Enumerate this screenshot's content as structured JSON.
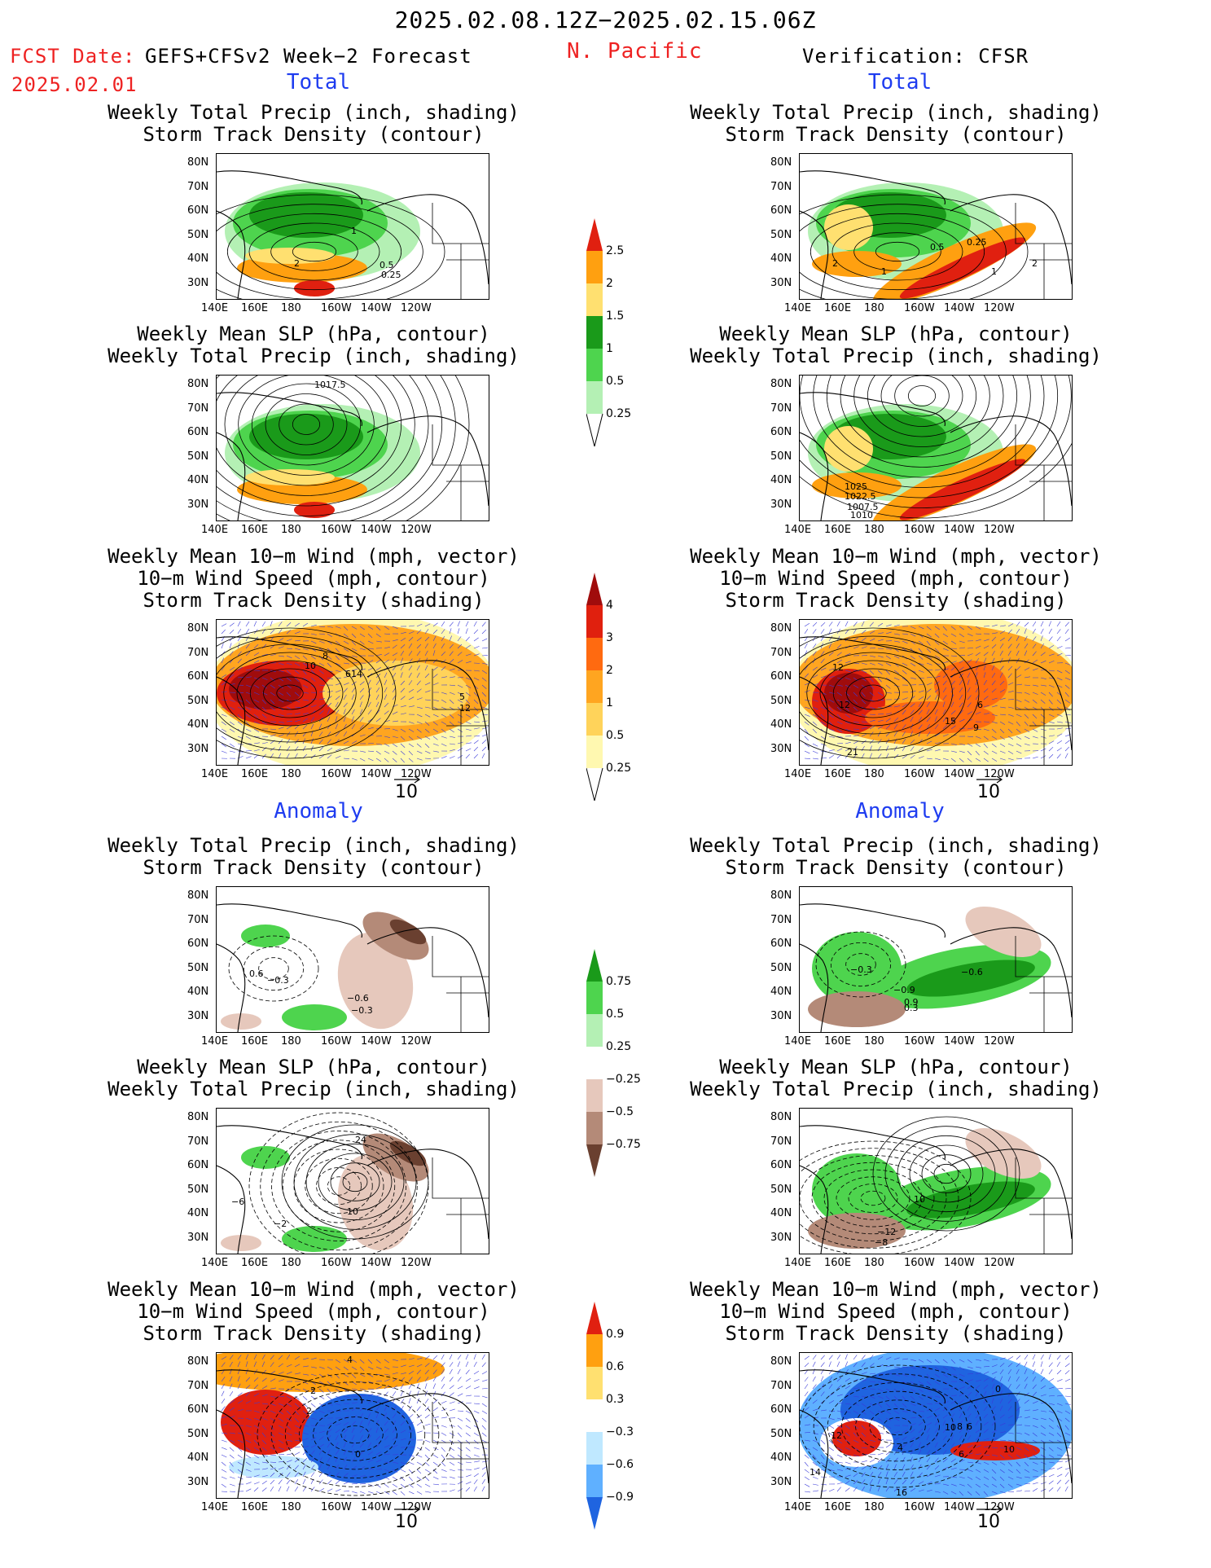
{
  "header": {
    "date_range": "2025.02.08.12Z−2025.02.15.06Z",
    "fcst_label": "FCST Date:",
    "fcst_date": "2025.02.01",
    "forecast_name": "GEFS+CFSv2 Week−2 Forecast",
    "region": "N. Pacific",
    "verification": "Verification: CFSR"
  },
  "sections": {
    "total": "Total",
    "anomaly": "Anomaly"
  },
  "titles": {
    "precip_track": "Weekly Total Precip (inch, shading)\nStorm Track Density (contour)",
    "slp_precip": "Weekly Mean SLP (hPa, contour)\nWeekly Total Precip (inch, shading)",
    "wind_track": "Weekly Mean 10−m Wind (mph, vector)\n10−m Wind Speed (mph, contour)\nStorm Track Density (shading)"
  },
  "axes": {
    "lat_labels": [
      "80N",
      "70N",
      "60N",
      "50N",
      "40N",
      "30N"
    ],
    "lon_labels": [
      "140E",
      "160E",
      "180",
      "160W",
      "140W",
      "120W"
    ]
  },
  "ref_vector": "10",
  "colorbars": {
    "precip_total": [
      "2.5",
      "2",
      "1.5",
      "1",
      "0.5",
      "0.25"
    ],
    "track_total": [
      "4",
      "3",
      "2",
      "1",
      "0.5",
      "0.25"
    ],
    "precip_anom": [
      "0.75",
      "0.5",
      "0.25",
      "−0.25",
      "−0.5",
      "−0.75"
    ],
    "track_anom": [
      "0.9",
      "0.6",
      "0.3",
      "−0.3",
      "−0.6",
      "−0.9"
    ]
  },
  "contour_labels": {
    "fc_precip_total": [
      "1",
      "2",
      "0.5",
      "0.25"
    ],
    "obs_precip_total": [
      "2",
      "1",
      "0.5",
      "0.25",
      "2",
      "1"
    ],
    "fc_slp_total": [
      "1017.5"
    ],
    "obs_slp_total": [
      "1025",
      "1022.5",
      "1007.5",
      "1010"
    ],
    "fc_wind_total": [
      "10",
      "8",
      "614",
      "5",
      "12"
    ],
    "obs_wind_total": [
      "12",
      "12",
      "15",
      "6",
      "9",
      "21"
    ],
    "fc_precip_anom": [
      "0.6",
      "−0.3",
      "−0.6",
      "−0.3"
    ],
    "obs_precip_anom": [
      "−0.3",
      "−0.9",
      "0.9",
      "0.3",
      "−0.6"
    ],
    "fc_slp_anom": [
      "24",
      "−6",
      "−2",
      "10"
    ],
    "obs_slp_anom": [
      "10",
      "−12",
      "−8"
    ],
    "fc_wind_anom": [
      "4",
      "2",
      "2",
      "0"
    ],
    "obs_wind_anom": [
      "0",
      "10",
      "12",
      "14",
      "4",
      "6",
      "10",
      "8",
      "6",
      "16"
    ]
  },
  "colors": {
    "precip_green": [
      "#b4f0b4",
      "#4ed44e",
      "#1a9a1a"
    ],
    "precip_warm": [
      "#ffe070",
      "#ffa010",
      "#e02010"
    ],
    "track_warm": [
      "#fff8b0",
      "#ffd35a",
      "#ffa520",
      "#ff6a10",
      "#e0200e",
      "#a00c0c"
    ],
    "anom_brown": [
      "#e6c8bc",
      "#b48a78",
      "#6a4030"
    ],
    "anom_blue": [
      "#bfe8ff",
      "#5fb0ff",
      "#1f64e0"
    ],
    "title_red": "#ee2222",
    "title_blue": "#1e3cf0"
  }
}
